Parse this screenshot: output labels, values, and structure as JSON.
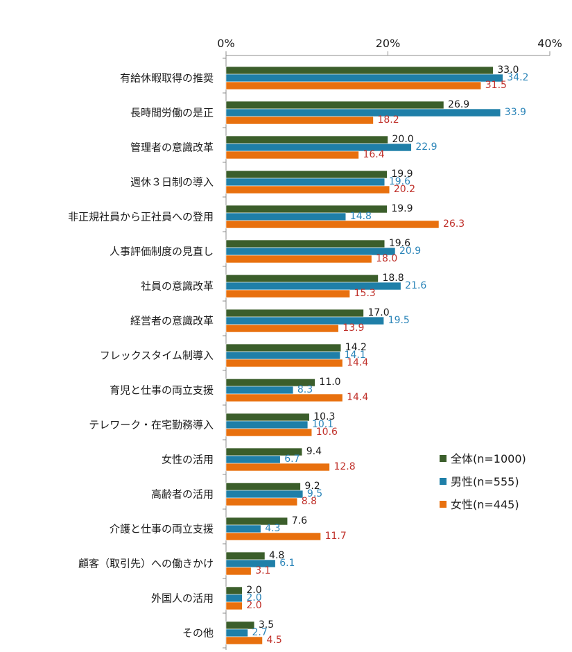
{
  "chart_data": {
    "type": "bar",
    "orientation": "horizontal",
    "title": "",
    "xlabel": "",
    "ylabel": "",
    "xlim": [
      0,
      40
    ],
    "xticks": [
      0,
      20,
      40
    ],
    "xtick_labels": [
      "0%",
      "20%",
      "40%"
    ],
    "grid": false,
    "legend_position": "right",
    "categories": [
      "有給休暇取得の推奨",
      "長時間労働の是正",
      "管理者の意識改革",
      "週休３日制の導入",
      "非正規社員から正社員への登用",
      "人事評価制度の見直し",
      "社員の意識改革",
      "経営者の意識改革",
      "フレックスタイム制導入",
      "育児と仕事の両立支援",
      "テレワーク・在宅勤務導入",
      "女性の活用",
      "高齢者の活用",
      "介護と仕事の両立支援",
      "顧客（取引先）への働きかけ",
      "外国人の活用",
      "その他"
    ],
    "series": [
      {
        "name": "全体(n=1000)",
        "color": "#3b5e2b",
        "label_color": "#1a1a1a",
        "values": [
          33.0,
          26.9,
          20.0,
          19.9,
          19.9,
          19.6,
          18.8,
          17.0,
          14.2,
          11.0,
          10.3,
          9.4,
          9.2,
          7.6,
          4.8,
          2.0,
          3.5
        ],
        "labels": [
          "33.0",
          "26.9",
          "20.0",
          "19.9",
          "19.9",
          "19.6",
          "18.8",
          "17.0",
          "14.2",
          "11.0",
          "10.3",
          "9.4",
          "9.2",
          "7.6",
          "4.8",
          "2.0",
          "3.5"
        ]
      },
      {
        "name": "男性(n=555)",
        "color": "#1f7fa8",
        "label_color": "#2a84b8",
        "values": [
          34.2,
          33.9,
          22.9,
          19.6,
          14.8,
          20.9,
          21.6,
          19.5,
          14.1,
          8.3,
          10.1,
          6.7,
          9.5,
          4.3,
          6.1,
          2.0,
          2.7
        ],
        "labels": [
          "34.2",
          "33.9",
          "22.9",
          "19.6",
          "14.8",
          "20.9",
          "21.6",
          "19.5",
          "14.1",
          "8.3",
          "10.1",
          "6.7",
          "9.5",
          "4.3",
          "6.1",
          "2.0",
          "2.7"
        ]
      },
      {
        "name": "女性(n=445)",
        "color": "#e8700e",
        "label_color": "#c0302a",
        "values": [
          31.5,
          18.2,
          16.4,
          20.2,
          26.3,
          18.0,
          15.3,
          13.9,
          14.4,
          14.4,
          10.6,
          12.8,
          8.8,
          11.7,
          3.1,
          2.0,
          4.5
        ],
        "labels": [
          "31.5",
          "18.2",
          "16.4",
          "20.2",
          "26.3",
          "18.0",
          "15.3",
          "13.9",
          "14.4",
          "14.4",
          "10.6",
          "12.8",
          "8.8",
          "11.7",
          "3.1",
          "2.0",
          "4.5"
        ]
      }
    ]
  }
}
